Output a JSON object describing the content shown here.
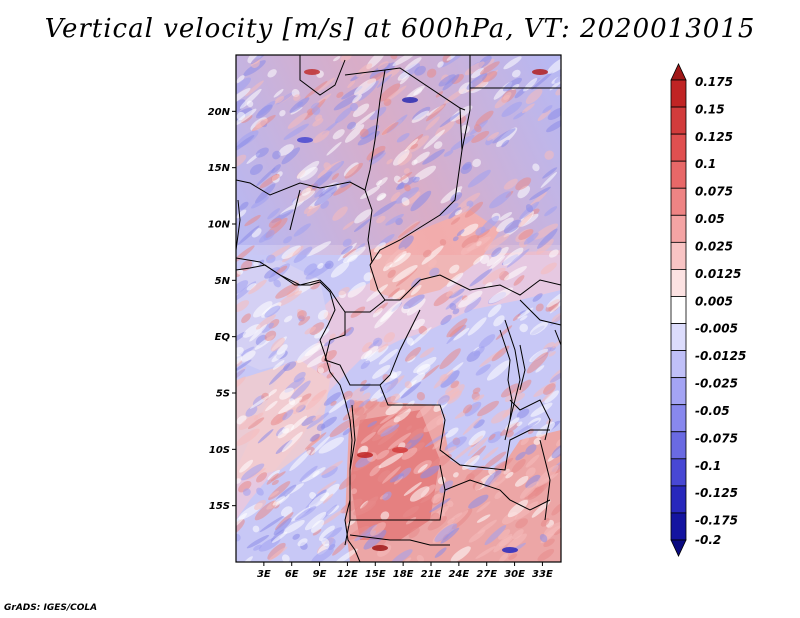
{
  "title": "Vertical velocity [m/s] at 600hPa, VT: 2020013015",
  "footer": "GrADS: IGES/COLA",
  "map": {
    "lon_range": [
      0,
      35
    ],
    "lat_range": [
      -20,
      25
    ],
    "lat_ticks": [
      {
        "value": 20,
        "label": "20N"
      },
      {
        "value": 15,
        "label": "15N"
      },
      {
        "value": 10,
        "label": "10N"
      },
      {
        "value": 5,
        "label": "5N"
      },
      {
        "value": 0,
        "label": "EQ"
      },
      {
        "value": -5,
        "label": "5S"
      },
      {
        "value": -10,
        "label": "10S"
      },
      {
        "value": -15,
        "label": "15S"
      }
    ],
    "lon_ticks": [
      {
        "value": 3,
        "label": "3E"
      },
      {
        "value": 6,
        "label": "6E"
      },
      {
        "value": 9,
        "label": "9E"
      },
      {
        "value": 12,
        "label": "12E"
      },
      {
        "value": 15,
        "label": "15E"
      },
      {
        "value": 18,
        "label": "18E"
      },
      {
        "value": 21,
        "label": "21E"
      },
      {
        "value": 24,
        "label": "24E"
      },
      {
        "value": 27,
        "label": "27E"
      },
      {
        "value": 30,
        "label": "30E"
      },
      {
        "value": 33,
        "label": "33E"
      }
    ]
  },
  "colorbar": {
    "labels": [
      "0.175",
      "0.15",
      "0.125",
      "0.1",
      "0.075",
      "0.05",
      "0.025",
      "0.0125",
      "0.005",
      "-0.005",
      "-0.0125",
      "-0.025",
      "-0.05",
      "-0.075",
      "-0.1",
      "-0.125",
      "-0.175",
      "-0.2"
    ],
    "colors": [
      "#a01818",
      "#c02424",
      "#d23c3c",
      "#e05050",
      "#e86868",
      "#ee8484",
      "#f4a4a4",
      "#f8c4c4",
      "#fce2e2",
      "#ffffff",
      "#dcdcfc",
      "#c0c0f8",
      "#a4a4f4",
      "#8888ee",
      "#6a6ae2",
      "#4848d4",
      "#2828bc",
      "#1414a0",
      "#0a0a80"
    ]
  }
}
